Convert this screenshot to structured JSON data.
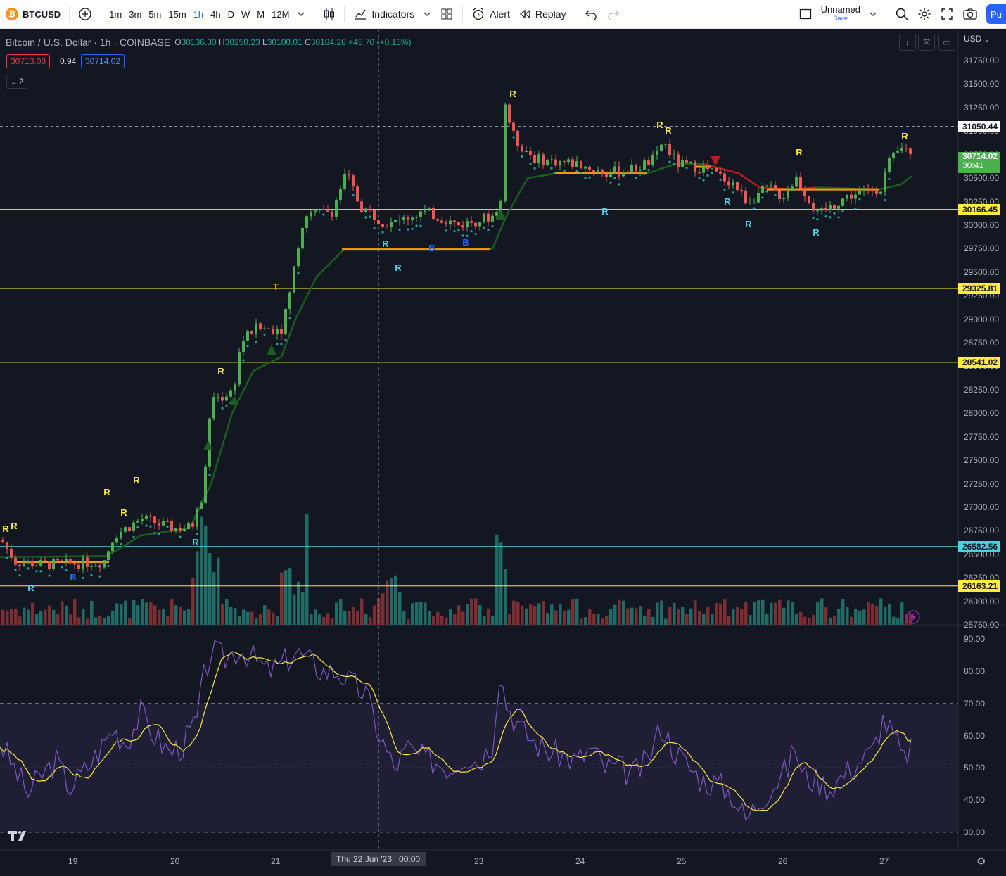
{
  "toolbar": {
    "symbol": "BTCUSD",
    "timeframes": [
      "1m",
      "3m",
      "5m",
      "15m",
      "1h",
      "4h",
      "D",
      "W",
      "M",
      "12M"
    ],
    "active_timeframe": "1h",
    "indicators_label": "Indicators",
    "alert_label": "Alert",
    "replay_label": "Replay",
    "layout_name": "Unnamed",
    "layout_save": "Save",
    "publish_label": "Pu"
  },
  "legend": {
    "title": "Bitcoin / U.S. Dollar · 1h · COINBASE",
    "open_k": "O",
    "open": "30136.30",
    "high_k": "H",
    "high": "30250.23",
    "low_k": "L",
    "low": "30100.01",
    "close_k": "C",
    "close": "30184.28",
    "change": "+45.70 (+0.15%)",
    "bid": "30713.08",
    "spread": "0.94",
    "ask": "30714.02",
    "indicators_count": "2"
  },
  "price_axis": {
    "currency": "USD",
    "ticks": [
      "31750.00",
      "31500.00",
      "31250.00",
      "31000.00",
      "30750.00",
      "30500.00",
      "30250.00",
      "30000.00",
      "29750.00",
      "29500.00",
      "29250.00",
      "29000.00",
      "28750.00",
      "28500.00",
      "28250.00",
      "28000.00",
      "27750.00",
      "27500.00",
      "27250.00",
      "27000.00",
      "26750.00",
      "26500.00",
      "26250.00",
      "26000.00",
      "25750.00"
    ],
    "levels": [
      {
        "value": "31050.44",
        "color": "#ffffff"
      },
      {
        "value": "30714.02",
        "color": "#4caf50",
        "sub": "30:41"
      },
      {
        "value": "30166.45",
        "color": "#ffeb3b"
      },
      {
        "value": "29325.81",
        "color": "#ffeb3b"
      },
      {
        "value": "28541.02",
        "color": "#ffeb3b"
      },
      {
        "value": "26582.56",
        "color": "#4dd0e1"
      },
      {
        "value": "26163.21",
        "color": "#ffeb3b"
      }
    ]
  },
  "rsi_axis": {
    "ticks": [
      "90.00",
      "80.00",
      "70.00",
      "60.00",
      "50.00",
      "40.00",
      "30.00"
    ]
  },
  "time_axis": {
    "labels": [
      "19",
      "20",
      "21",
      "Thu 22 Jun '23   00:00",
      "23",
      "24",
      "25",
      "26",
      "27"
    ]
  },
  "signals": {
    "r": "R",
    "b": "B",
    "t": "T"
  },
  "colors": {
    "up": "#4caf50",
    "down": "#ef5350",
    "hline": "#ffeb3b",
    "cyan": "#4dd0e1",
    "rsi": "#7e57c2",
    "rsi_ma": "#ffeb3b",
    "trail": "#1b5e20"
  }
}
